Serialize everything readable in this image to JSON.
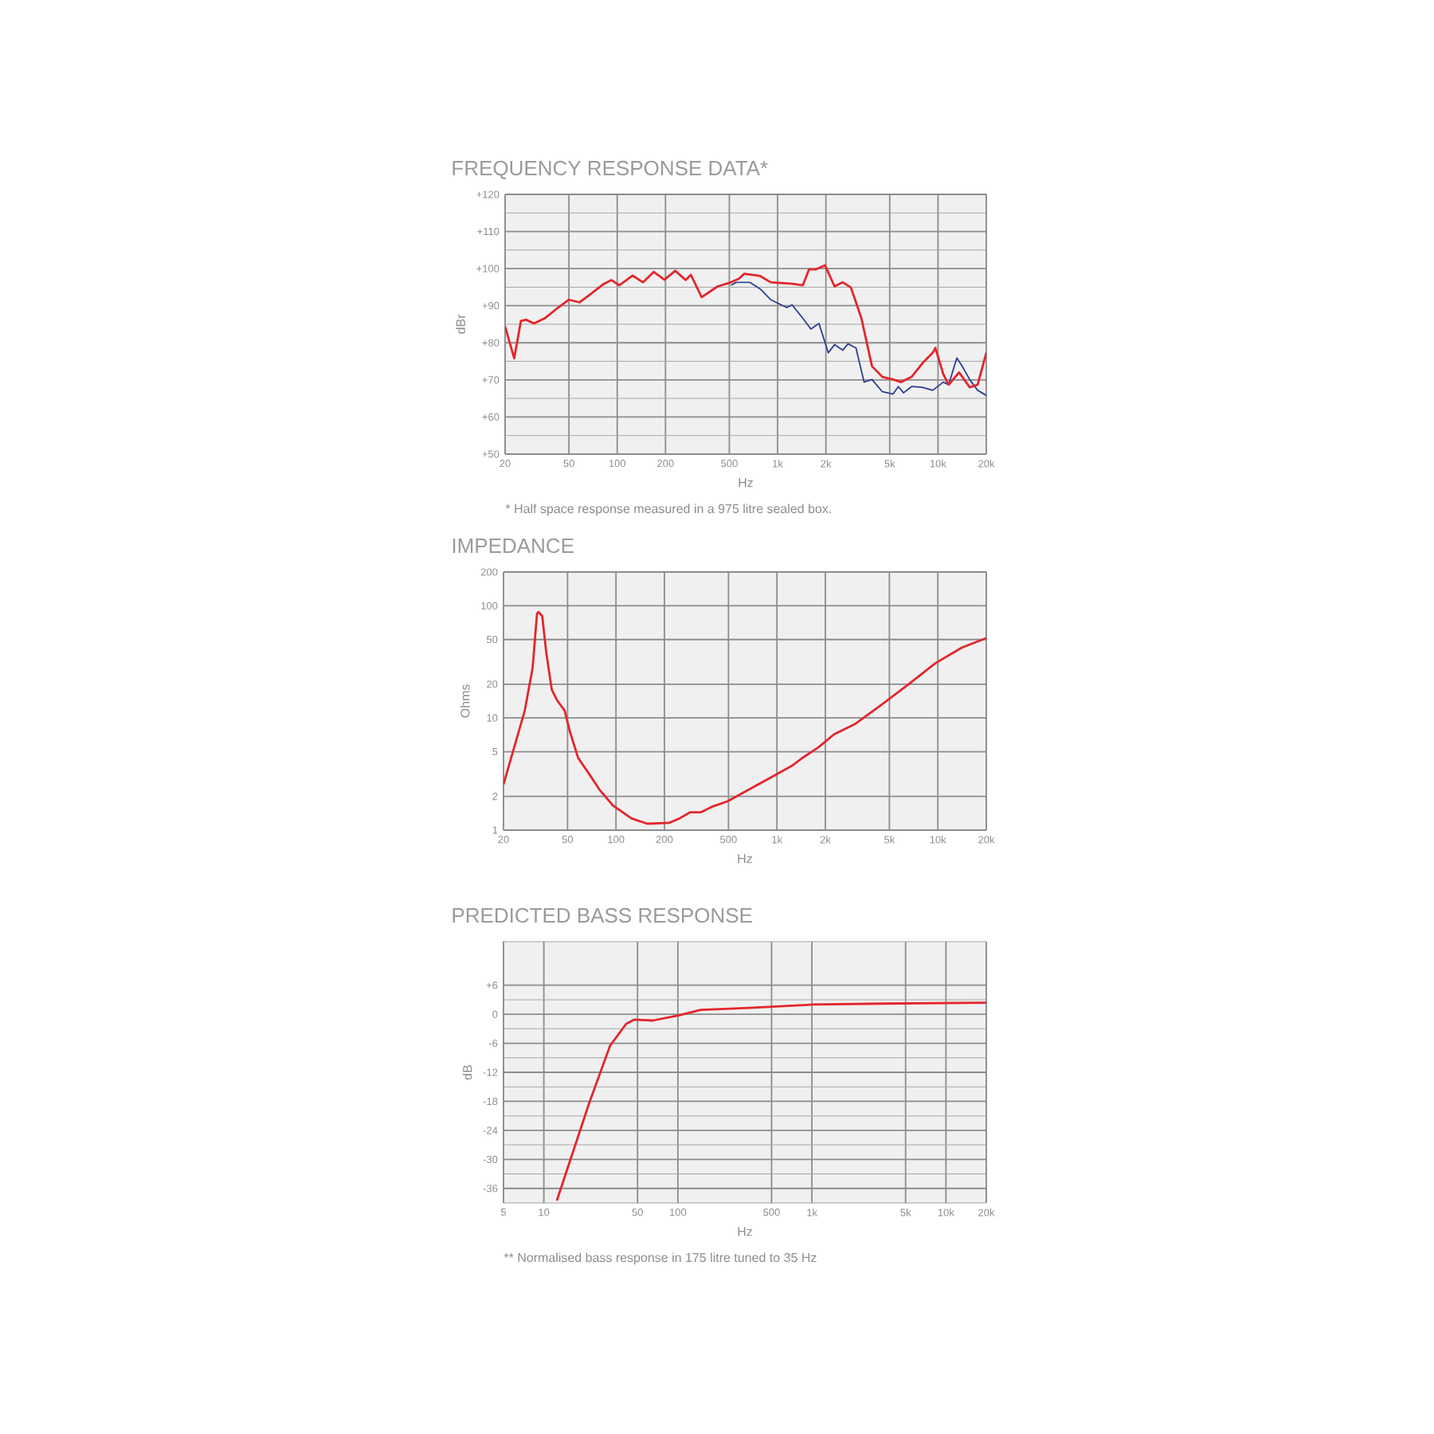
{
  "chart_data": [
    {
      "type": "line",
      "title": "FREQUENCY RESPONSE DATA*",
      "xlabel": "Hz",
      "ylabel": "dBr",
      "log": "x",
      "grid": true,
      "xlim": [
        20,
        20000
      ],
      "ylim": [
        50,
        120
      ],
      "xticks": [
        20,
        50,
        100,
        200,
        500,
        {
          "value": 1000,
          "label": "1k"
        },
        {
          "value": 2000,
          "label": "2k"
        },
        {
          "value": 5000,
          "label": "5k"
        },
        {
          "value": 10000,
          "label": "10k"
        },
        {
          "value": 20000,
          "label": "20k"
        }
      ],
      "yticks": [
        {
          "value": 50,
          "label": "+50"
        },
        {
          "value": 60,
          "label": "+60"
        },
        {
          "value": 70,
          "label": "+70"
        },
        {
          "value": 80,
          "label": "+80"
        },
        {
          "value": 90,
          "label": "+90"
        },
        {
          "value": 100,
          "label": "+100"
        },
        {
          "value": 110,
          "label": "+110"
        },
        {
          "value": 120,
          "label": "+120"
        }
      ],
      "series": [
        {
          "color": "#2b3f91",
          "x": [
            512,
            553,
            669,
            779,
            906,
            1140,
            1232,
            1436,
            1613,
            1810,
            1975,
            2068,
            2264,
            2545,
            2746,
            3080,
            3460,
            3875,
            4500,
            5250,
            5660,
            6100,
            6840,
            7970,
            9270,
            10800,
            11650,
            13100,
            14140,
            15760,
            17660,
            20000
          ],
          "values": [
            95.5,
            96.3,
            96.3,
            94.5,
            91.6,
            89.5,
            90.2,
            86.6,
            83.7,
            85.2,
            80.1,
            77.3,
            79.5,
            78.0,
            79.7,
            78.6,
            69.4,
            70.1,
            66.8,
            66.2,
            68.2,
            66.5,
            68.2,
            68.0,
            67.2,
            69.4,
            68.7,
            75.9,
            73.7,
            70.1,
            67.2,
            65.8
          ]
        },
        {
          "color": "#e3262b",
          "x": [
            20,
            22.8,
            25.1,
            27,
            30.3,
            35.3,
            42.9,
            50,
            58.2,
            67.8,
            82.7,
            92.1,
            103,
            124.8,
            145,
            169,
            197,
            230,
            267,
            288,
            336,
            423,
            512,
            574,
            620,
            779,
            906,
            1232,
            1436,
            1571,
            1736,
            1975,
            2264,
            2545,
            2864,
            3330,
            3875,
            4500,
            5250,
            5880,
            6840,
            7970,
            9270,
            9630,
            10800,
            11650,
            13540,
            15760,
            17660,
            20000
          ],
          "values": [
            84.4,
            75.8,
            85.9,
            86.2,
            85.2,
            86.6,
            89.5,
            91.6,
            90.9,
            93.0,
            95.9,
            96.9,
            95.5,
            98.1,
            96.3,
            99.1,
            97.0,
            99.4,
            96.9,
            98.3,
            92.3,
            95.2,
            96.3,
            97.3,
            98.6,
            98.0,
            96.3,
            95.9,
            95.5,
            99.8,
            99.8,
            100.9,
            95.2,
            96.3,
            94.9,
            86.6,
            73.7,
            70.8,
            70.1,
            69.4,
            70.8,
            74.4,
            77.3,
            78.6,
            71.5,
            68.7,
            72.0,
            68.0,
            68.7,
            77.3
          ]
        }
      ],
      "annotations": [
        "* Half space response measured in a 975 litre sealed box."
      ]
    },
    {
      "type": "line",
      "title": "IMPEDANCE",
      "xlabel": "Hz",
      "ylabel": "Ohms",
      "log": "xy",
      "grid": true,
      "xlim": [
        20,
        20000
      ],
      "ylim": [
        1,
        200
      ],
      "xticks": [
        20,
        50,
        100,
        200,
        500,
        {
          "value": 1000,
          "label": "1k"
        },
        {
          "value": 2000,
          "label": "2k"
        },
        {
          "value": 5000,
          "label": "5k"
        },
        {
          "value": 10000,
          "label": "10k"
        },
        {
          "value": 20000,
          "label": "20k"
        }
      ],
      "yticks": [
        1,
        2,
        5,
        10,
        20,
        50,
        100,
        200
      ],
      "series": [
        {
          "color": "#e3262b",
          "x": [
            20,
            23.3,
            27.1,
            30.3,
            32.3,
            33.0,
            34.8,
            36.9,
            39.9,
            42.9,
            48.0,
            51.8,
            58.2,
            67.8,
            78.9,
            95.6,
            125,
            157,
            213,
            248,
            288,
            336,
            392,
            494,
            670,
            906,
            1232,
            1436,
            1810,
            2264,
            3080,
            4500,
            6580,
            9630,
            14140,
            20000
          ],
          "values": [
            2.56,
            5.46,
            11.6,
            27.6,
            85,
            88,
            81,
            38,
            17.9,
            14.5,
            11.6,
            7.5,
            4.4,
            3.2,
            2.3,
            1.66,
            1.27,
            1.14,
            1.16,
            1.27,
            1.44,
            1.44,
            1.61,
            1.81,
            2.3,
            2.92,
            3.73,
            4.39,
            5.46,
            7.14,
            8.88,
            13.2,
            20.0,
            30.7,
            42.5,
            51.5
          ]
        }
      ]
    },
    {
      "type": "line",
      "title": "PREDICTED BASS RESPONSE",
      "xlabel": "Hz",
      "ylabel": "dB",
      "log": "x",
      "grid": true,
      "xlim": [
        5,
        20000
      ],
      "ylim": [
        -39,
        15
      ],
      "xticks": [
        5,
        10,
        50,
        100,
        500,
        {
          "value": 1000,
          "label": "1k"
        },
        {
          "value": 5000,
          "label": "5k"
        },
        {
          "value": 10000,
          "label": "10k"
        },
        {
          "value": 20000,
          "label": "20k"
        }
      ],
      "yticks": [
        {
          "value": -36,
          "label": "-36"
        },
        {
          "value": -30,
          "label": "-30"
        },
        {
          "value": -24,
          "label": "-24"
        },
        {
          "value": -18,
          "label": "-18"
        },
        {
          "value": -12,
          "label": "-12"
        },
        {
          "value": -6,
          "label": "-6"
        },
        0,
        {
          "value": 6,
          "label": "+6"
        }
      ],
      "series": [
        {
          "color": "#e3262b",
          "x": [
            12.5,
            21.7,
            31.2,
            41.1,
            47.3,
            65.0,
            102.5,
            148,
            340,
            1015,
            3350,
            20000
          ],
          "values": [
            -38.5,
            -18.5,
            -6.5,
            -2.0,
            -1.1,
            -1.3,
            -0.2,
            0.9,
            1.3,
            2.0,
            2.2,
            2.4
          ]
        }
      ],
      "annotations": [
        "** Normalised bass response in 175 litre tuned to 35 Hz"
      ]
    }
  ]
}
